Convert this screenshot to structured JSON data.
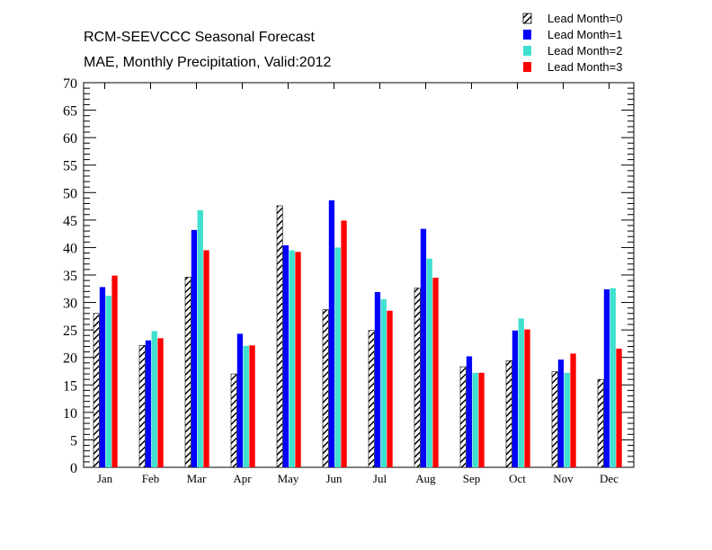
{
  "chart_data": {
    "type": "bar",
    "title": "RCM-SEEVCCC Seasonal Forecast",
    "subtitle": "MAE, Monthly Precipitation, Valid:2012",
    "xlabel": "",
    "ylabel": "",
    "ylim": [
      0,
      70
    ],
    "y_major_step": 5,
    "grid": false,
    "legend_position": "top-right",
    "categories": [
      "Jan",
      "Feb",
      "Mar",
      "Apr",
      "May",
      "Jun",
      "Jul",
      "Aug",
      "Sep",
      "Oct",
      "Nov",
      "Dec"
    ],
    "series": [
      {
        "name": "Lead Month=0",
        "color": "#000000",
        "pattern": "hatched",
        "values": [
          28,
          22.2,
          34.6,
          17,
          47.6,
          28.7,
          24.9,
          32.6,
          18.3,
          19.4,
          17.4,
          16
        ]
      },
      {
        "name": "Lead Month=1",
        "color": "#0000ff",
        "pattern": "solid",
        "values": [
          32.8,
          23.1,
          43.2,
          24.3,
          40.4,
          48.6,
          31.9,
          43.4,
          20.2,
          24.9,
          19.6,
          32.4
        ]
      },
      {
        "name": "Lead Month=2",
        "color": "#40e0d0",
        "pattern": "solid",
        "values": [
          31.2,
          24.8,
          46.8,
          22.1,
          39.5,
          40,
          30.6,
          38,
          17.2,
          27.1,
          17.2,
          32.6
        ]
      },
      {
        "name": "Lead Month=3",
        "color": "#ff0000",
        "pattern": "solid",
        "values": [
          34.9,
          23.5,
          39.5,
          22.2,
          39.2,
          44.9,
          28.5,
          34.5,
          17.2,
          25.1,
          20.7,
          21.6
        ]
      }
    ]
  }
}
